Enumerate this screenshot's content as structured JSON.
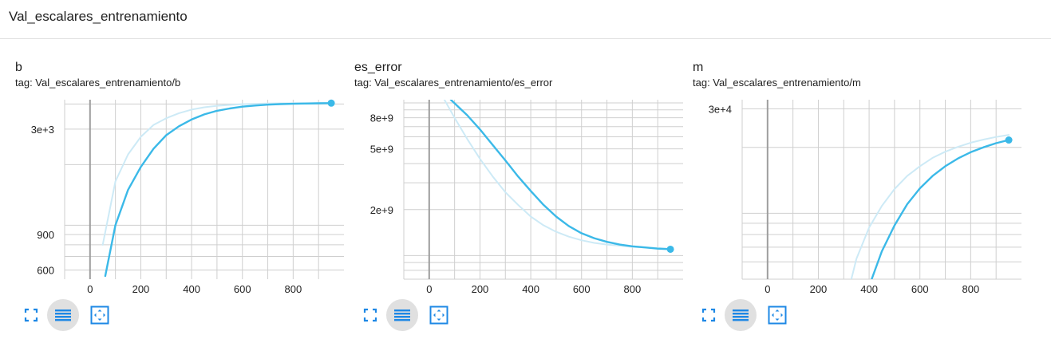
{
  "header": {
    "title": "Val_escalares_entrenamiento"
  },
  "colors": {
    "line": "#3bb9e8",
    "smooth_bg": "#cdeaf6",
    "grid": "#cfcfcf",
    "axis_zero": "#9e9e9e",
    "icon": "#1e88e5",
    "active_bg": "#e0e0e0"
  },
  "controls": [
    {
      "name": "fullscreen-icon"
    },
    {
      "name": "toggle-log-scale-icon"
    },
    {
      "name": "fit-domain-icon"
    }
  ],
  "cards": [
    {
      "title": "b",
      "tag": "tag: Val_escalares_entrenamiento/b",
      "chart_data": {
        "type": "line",
        "title": "b",
        "xlabel": "",
        "ylabel": "",
        "xlim": [
          -100,
          1000
        ],
        "ylim": [
          540,
          4200
        ],
        "yscale": "log",
        "x_ticks": [
          0,
          200,
          400,
          600,
          800
        ],
        "x_tick_labels": [
          "0",
          "200",
          "400",
          "600",
          "800"
        ],
        "y_ticks": [
          600,
          900,
          3000
        ],
        "y_tick_labels": [
          "600",
          "900",
          "3e+3"
        ],
        "grid": true,
        "series": [
          {
            "role": "raw",
            "x": [
              50,
              100,
              150,
              200,
              250,
              300,
              350,
              400,
              450,
              500,
              550,
              600,
              650,
              700,
              750,
              800,
              850,
              900,
              950
            ],
            "y": [
              800,
              1650,
              2250,
              2750,
              3150,
              3400,
              3600,
              3750,
              3850,
              3920,
              3960,
              3990,
              4010,
              4020,
              4030,
              4035,
              4040,
              4042,
              4044
            ]
          },
          {
            "role": "smoothed",
            "x": [
              60,
              100,
              150,
              200,
              250,
              300,
              350,
              400,
              450,
              500,
              550,
              600,
              650,
              700,
              750,
              800,
              850,
              900,
              950
            ],
            "y": [
              560,
              1000,
              1500,
              1950,
              2400,
              2800,
              3100,
              3350,
              3550,
              3700,
              3800,
              3880,
              3930,
              3970,
              3995,
              4010,
              4020,
              4030,
              4040
            ]
          }
        ]
      }
    },
    {
      "title": "es_error",
      "tag": "tag: Val_escalares_entrenamiento/es_error",
      "chart_data": {
        "type": "line",
        "title": "es_error",
        "xlabel": "",
        "ylabel": "",
        "xlim": [
          -100,
          1000
        ],
        "ylim": [
          700000000,
          10500000000
        ],
        "yscale": "log",
        "x_ticks": [
          0,
          200,
          400,
          600,
          800
        ],
        "x_tick_labels": [
          "0",
          "200",
          "400",
          "600",
          "800"
        ],
        "y_ticks": [
          2000000000,
          5000000000,
          8000000000
        ],
        "y_tick_labels": [
          "2e+9",
          "5e+9",
          "8e+9"
        ],
        "grid": true,
        "series": [
          {
            "role": "raw",
            "x": [
              60,
              100,
              150,
              200,
              250,
              300,
              350,
              400,
              450,
              500,
              550,
              600,
              650,
              700,
              750,
              800,
              850,
              900,
              950
            ],
            "y": [
              10500000000,
              8000000000,
              5800000000,
              4300000000,
              3300000000,
              2600000000,
              2150000000,
              1800000000,
              1580000000,
              1430000000,
              1330000000,
              1260000000,
              1210000000,
              1180000000,
              1160000000,
              1140000000,
              1130000000,
              1120000000,
              1110000000
            ]
          },
          {
            "role": "smoothed",
            "x": [
              85,
              150,
              200,
              250,
              300,
              350,
              400,
              450,
              500,
              550,
              600,
              650,
              700,
              750,
              800,
              850,
              900,
              950
            ],
            "y": [
              10500000000,
              8300000000,
              6700000000,
              5300000000,
              4200000000,
              3300000000,
              2650000000,
              2150000000,
              1800000000,
              1560000000,
              1400000000,
              1300000000,
              1230000000,
              1180000000,
              1150000000,
              1130000000,
              1110000000,
              1100000000
            ]
          }
        ]
      }
    },
    {
      "title": "m",
      "tag": "tag: Val_escalares_entrenamiento/m",
      "chart_data": {
        "type": "line",
        "title": "m",
        "xlabel": "",
        "ylabel": "",
        "xlim": [
          -100,
          1000
        ],
        "ylim": [
          5000,
          33000
        ],
        "yscale": "log",
        "x_ticks": [
          0,
          200,
          400,
          600,
          800
        ],
        "x_tick_labels": [
          "0",
          "200",
          "400",
          "600",
          "800"
        ],
        "y_ticks": [
          30000
        ],
        "y_tick_labels": [
          "3e+4"
        ],
        "grid": true,
        "series": [
          {
            "role": "raw",
            "x": [
              330,
              350,
              400,
              450,
              500,
              550,
              600,
              650,
              700,
              750,
              800,
              850,
              900,
              950
            ],
            "y": [
              5000,
              6200,
              8600,
              10800,
              12900,
              14800,
              16400,
              17900,
              19100,
              20100,
              21000,
              21700,
              22300,
              22800
            ]
          },
          {
            "role": "smoothed",
            "x": [
              410,
              450,
              500,
              550,
              600,
              650,
              700,
              750,
              800,
              850,
              900,
              950
            ],
            "y": [
              5000,
              6700,
              8800,
              11000,
              13000,
              14800,
              16400,
              17800,
              19000,
              20000,
              20900,
              21600
            ]
          }
        ]
      }
    }
  ]
}
